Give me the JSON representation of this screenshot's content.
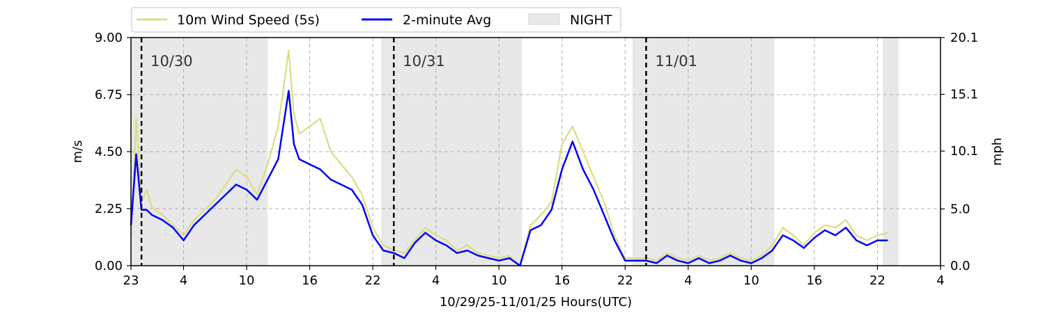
{
  "chart_data": {
    "type": "line",
    "title": "",
    "xlabel": "10/29/25-11/01/25  Hours(UTC)",
    "ylabel_left": "m/s",
    "ylabel_right": "mph",
    "x_unit": "hours since 10/29/25 23:00 UTC",
    "xlim": [
      0,
      77
    ],
    "ylim": [
      0,
      9
    ],
    "y2lim": [
      0,
      20.1
    ],
    "x_ticks": [
      {
        "value": 0,
        "label": "23"
      },
      {
        "value": 5,
        "label": "4"
      },
      {
        "value": 11,
        "label": "10"
      },
      {
        "value": 17,
        "label": "16"
      },
      {
        "value": 23,
        "label": "22"
      },
      {
        "value": 29,
        "label": "4"
      },
      {
        "value": 35,
        "label": "10"
      },
      {
        "value": 41,
        "label": "16"
      },
      {
        "value": 47,
        "label": "22"
      },
      {
        "value": 53,
        "label": "4"
      },
      {
        "value": 59,
        "label": "10"
      },
      {
        "value": 65,
        "label": "16"
      },
      {
        "value": 71,
        "label": "22"
      },
      {
        "value": 77,
        "label": "4"
      }
    ],
    "y_ticks": [
      {
        "value": 0,
        "label": "0.00"
      },
      {
        "value": 2.25,
        "label": "2.25"
      },
      {
        "value": 4.5,
        "label": "4.50"
      },
      {
        "value": 6.75,
        "label": "6.75"
      },
      {
        "value": 9,
        "label": "9.00"
      }
    ],
    "y2_ticks": [
      {
        "value": 0,
        "label": "0.0"
      },
      {
        "value": 5.0,
        "label": "5.0"
      },
      {
        "value": 10.1,
        "label": "10.1"
      },
      {
        "value": 15.1,
        "label": "15.1"
      },
      {
        "value": 20.1,
        "label": "20.1"
      }
    ],
    "grid": true,
    "legend_placement": "top",
    "night_periods": [
      [
        0,
        13
      ],
      [
        23.8,
        37.2
      ],
      [
        47.7,
        61.2
      ],
      [
        71.5,
        73
      ]
    ],
    "day_markers": [
      {
        "x": 1,
        "label": "10/30"
      },
      {
        "x": 25,
        "label": "10/31"
      },
      {
        "x": 49,
        "label": "11/01"
      }
    ],
    "series": [
      {
        "name": "10m Wind Speed (5s)",
        "color": "#dcdc82",
        "x": [
          0,
          0.5,
          1,
          1.5,
          2,
          3,
          4,
          5,
          6,
          7,
          8,
          9,
          10,
          11,
          12,
          13,
          14,
          15,
          15.5,
          16,
          17,
          18,
          19,
          20,
          21,
          22,
          23,
          24,
          25,
          26,
          27,
          28,
          29,
          30,
          31,
          32,
          33,
          34,
          35,
          36,
          37,
          38,
          39,
          40,
          41,
          42,
          43,
          44,
          45,
          46,
          47,
          48,
          49,
          50,
          51,
          52,
          53,
          54,
          55,
          56,
          57,
          58,
          59,
          60,
          61,
          62,
          63,
          64,
          65,
          66,
          67,
          68,
          69,
          70,
          71,
          72
        ],
        "values": [
          1.2,
          5.8,
          2.5,
          3.0,
          2.3,
          2.0,
          1.6,
          1.2,
          1.8,
          2.2,
          2.6,
          3.2,
          3.8,
          3.5,
          2.8,
          4.0,
          5.5,
          8.5,
          6.0,
          5.2,
          5.5,
          5.8,
          4.5,
          4.0,
          3.5,
          2.8,
          1.5,
          0.8,
          0.6,
          0.5,
          1.0,
          1.5,
          1.2,
          1.0,
          0.6,
          0.8,
          0.5,
          0.4,
          0.3,
          0.4,
          0.0,
          1.6,
          2.0,
          2.5,
          4.8,
          5.5,
          4.5,
          3.5,
          2.5,
          1.2,
          0.3,
          0.3,
          0.3,
          0.2,
          0.5,
          0.3,
          0.2,
          0.4,
          0.2,
          0.3,
          0.5,
          0.3,
          0.2,
          0.4,
          0.8,
          1.5,
          1.2,
          0.8,
          1.3,
          1.6,
          1.5,
          1.8,
          1.2,
          1.0,
          1.2,
          1.3
        ]
      },
      {
        "name": "2-minute Avg",
        "color": "#0000ff",
        "x": [
          0,
          0.5,
          1,
          1.5,
          2,
          3,
          4,
          5,
          6,
          7,
          8,
          9,
          10,
          11,
          12,
          13,
          14,
          15,
          15.5,
          16,
          17,
          18,
          19,
          20,
          21,
          22,
          23,
          24,
          25,
          26,
          27,
          28,
          29,
          30,
          31,
          32,
          33,
          34,
          35,
          36,
          37,
          38,
          39,
          40,
          41,
          42,
          43,
          44,
          45,
          46,
          47,
          48,
          49,
          50,
          51,
          52,
          53,
          54,
          55,
          56,
          57,
          58,
          59,
          60,
          61,
          62,
          63,
          64,
          65,
          66,
          67,
          68,
          69,
          70,
          71,
          72
        ],
        "values": [
          1.6,
          4.4,
          2.2,
          2.2,
          2.0,
          1.8,
          1.5,
          1.0,
          1.6,
          2.0,
          2.4,
          2.8,
          3.2,
          3.0,
          2.6,
          3.4,
          4.2,
          6.9,
          4.8,
          4.2,
          4.0,
          3.8,
          3.4,
          3.2,
          3.0,
          2.4,
          1.2,
          0.6,
          0.5,
          0.3,
          0.9,
          1.3,
          1.0,
          0.8,
          0.5,
          0.6,
          0.4,
          0.3,
          0.2,
          0.3,
          0.0,
          1.4,
          1.6,
          2.2,
          3.8,
          4.9,
          3.8,
          3.0,
          2.0,
          1.0,
          0.2,
          0.2,
          0.2,
          0.1,
          0.4,
          0.2,
          0.1,
          0.3,
          0.1,
          0.2,
          0.4,
          0.2,
          0.1,
          0.3,
          0.6,
          1.2,
          1.0,
          0.7,
          1.1,
          1.4,
          1.2,
          1.5,
          1.0,
          0.8,
          1.0,
          1.0
        ]
      }
    ],
    "legend": [
      {
        "label": "10m Wind Speed (5s)",
        "kind": "line",
        "color": "#dcdc82"
      },
      {
        "label": "2-minute Avg",
        "kind": "line",
        "color": "#0000ff"
      },
      {
        "label": "NIGHT",
        "kind": "patch",
        "color": "#e8e8e8"
      }
    ]
  }
}
